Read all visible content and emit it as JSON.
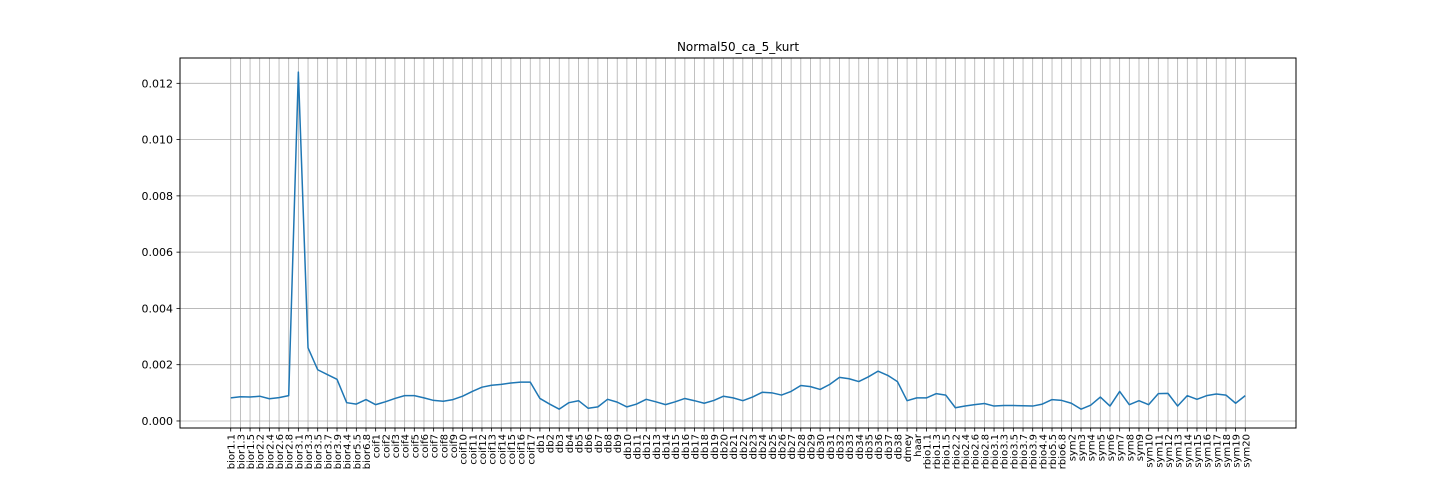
{
  "chart_data": {
    "type": "line",
    "title": "Normal50_ca_5_kurt",
    "xlabel": "",
    "ylabel": "",
    "ylim": [
      -0.00025,
      0.0129
    ],
    "yticks": [
      0.0,
      0.002,
      0.004,
      0.006,
      0.008,
      0.01,
      0.012
    ],
    "ytick_labels": [
      "0.000",
      "0.002",
      "0.004",
      "0.006",
      "0.008",
      "0.010",
      "0.012"
    ],
    "grid": true,
    "line_color": "#1f77b4",
    "categories": [
      "bior1.1",
      "bior1.3",
      "bior1.5",
      "bior2.2",
      "bior2.4",
      "bior2.6",
      "bior2.8",
      "bior3.1",
      "bior3.3",
      "bior3.5",
      "bior3.7",
      "bior3.9",
      "bior4.4",
      "bior5.5",
      "bior6.8",
      "coif1",
      "coif2",
      "coif3",
      "coif4",
      "coif5",
      "coif6",
      "coif7",
      "coif8",
      "coif9",
      "coif10",
      "coif11",
      "coif12",
      "coif13",
      "coif14",
      "coif15",
      "coif16",
      "coif17",
      "db1",
      "db2",
      "db3",
      "db4",
      "db5",
      "db6",
      "db7",
      "db8",
      "db9",
      "db10",
      "db11",
      "db12",
      "db13",
      "db14",
      "db15",
      "db16",
      "db17",
      "db18",
      "db19",
      "db20",
      "db21",
      "db22",
      "db23",
      "db24",
      "db25",
      "db26",
      "db27",
      "db28",
      "db29",
      "db30",
      "db31",
      "db32",
      "db33",
      "db34",
      "db35",
      "db36",
      "db37",
      "db38",
      "dmey",
      "haar",
      "rbio1.1",
      "rbio1.3",
      "rbio1.5",
      "rbio2.2",
      "rbio2.4",
      "rbio2.6",
      "rbio2.8",
      "rbio3.1",
      "rbio3.3",
      "rbio3.5",
      "rbio3.7",
      "rbio3.9",
      "rbio4.4",
      "rbio5.5",
      "rbio6.8",
      "sym2",
      "sym3",
      "sym4",
      "sym5",
      "sym6",
      "sym7",
      "sym8",
      "sym9",
      "sym10",
      "sym11",
      "sym12",
      "sym13",
      "sym14",
      "sym15",
      "sym16",
      "sym17",
      "sym18",
      "sym19",
      "sym20"
    ],
    "series": [
      {
        "values": [
          0.00082,
          0.00086,
          0.00085,
          0.00088,
          0.00079,
          0.00083,
          0.0009,
          0.0124,
          0.0026,
          0.00182,
          0.00165,
          0.00148,
          0.00065,
          0.0006,
          0.00076,
          0.00058,
          0.00068,
          0.0008,
          0.0009,
          0.0009,
          0.00082,
          0.00073,
          0.0007,
          0.00076,
          0.00088,
          0.00105,
          0.0012,
          0.00127,
          0.0013,
          0.00135,
          0.00138,
          0.00138,
          0.0008,
          0.0006,
          0.00042,
          0.00065,
          0.00072,
          0.00045,
          0.0005,
          0.00077,
          0.00067,
          0.0005,
          0.0006,
          0.00077,
          0.00068,
          0.00058,
          0.00068,
          0.0008,
          0.00072,
          0.00063,
          0.00073,
          0.00088,
          0.00082,
          0.00072,
          0.00085,
          0.00102,
          0.001,
          0.00092,
          0.00105,
          0.00126,
          0.00122,
          0.00112,
          0.0013,
          0.00155,
          0.0015,
          0.0014,
          0.00157,
          0.00177,
          0.00162,
          0.0014,
          0.00072,
          0.00082,
          0.00082,
          0.00097,
          0.00092,
          0.00047,
          0.00053,
          0.00058,
          0.00062,
          0.00053,
          0.00055,
          0.00055,
          0.00054,
          0.00053,
          0.0006,
          0.00076,
          0.00073,
          0.00063,
          0.00042,
          0.00056,
          0.00085,
          0.00053,
          0.00105,
          0.00058,
          0.00072,
          0.00058,
          0.00097,
          0.00098,
          0.00053,
          0.0009,
          0.00077,
          0.0009,
          0.00096,
          0.00092,
          0.00063,
          0.0009
        ]
      }
    ]
  }
}
